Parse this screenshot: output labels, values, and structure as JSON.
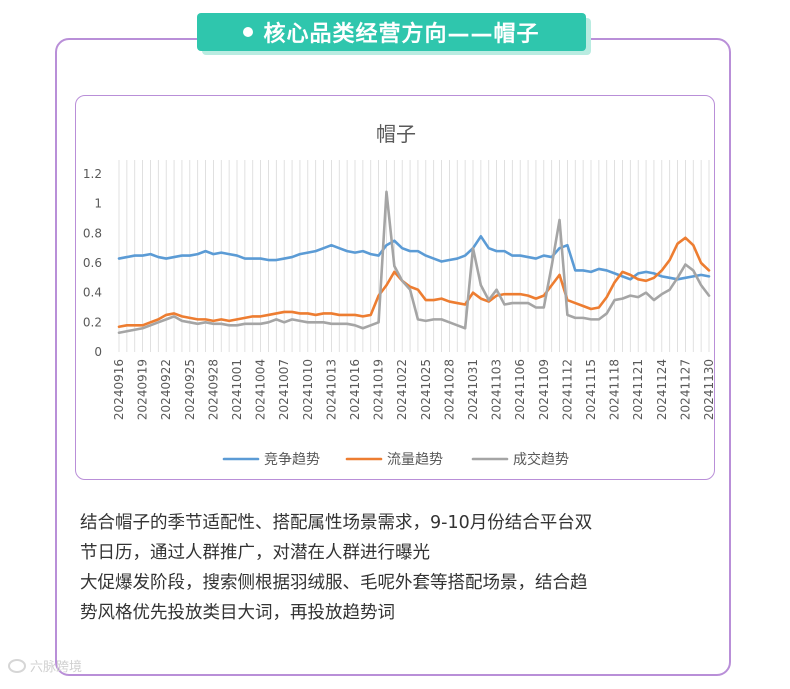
{
  "header": {
    "title": "核心品类经营方向——帽子"
  },
  "watermark": {
    "text": "六脉跨境"
  },
  "body_text": {
    "lines": [
      "结合帽子的季节适配性、搭配属性场景需求，9-10月份结合平台双",
      "节日历，通过人群推广，对潜在人群进行曝光",
      "大促爆发阶段，搜索侧根据羽绒服、毛呢外套等搭配场景，结合趋",
      "势风格优先投放类目大词，再投放趋势词"
    ]
  },
  "chart_data": {
    "type": "line",
    "title": "帽子",
    "xlabel": "",
    "ylabel": "",
    "ylim": [
      0,
      1.2
    ],
    "yticks": [
      "0",
      "0.2",
      "0.4",
      "0.6",
      "0.8",
      "1",
      "1.2"
    ],
    "grid": "vertical",
    "legend_position": "bottom",
    "x": [
      "20240916",
      "20240917",
      "20240918",
      "20240919",
      "20240920",
      "20240921",
      "20240922",
      "20240923",
      "20240924",
      "20240925",
      "20240926",
      "20240927",
      "20240928",
      "20240929",
      "20240930",
      "20241001",
      "20241002",
      "20241003",
      "20241004",
      "20241005",
      "20241006",
      "20241007",
      "20241008",
      "20241009",
      "20241010",
      "20241011",
      "20241012",
      "20241013",
      "20241014",
      "20241015",
      "20241016",
      "20241017",
      "20241018",
      "20241019",
      "20241020",
      "20241021",
      "20241022",
      "20241023",
      "20241024",
      "20241025",
      "20241026",
      "20241027",
      "20241028",
      "20241029",
      "20241030",
      "20241031",
      "20241101",
      "20241102",
      "20241103",
      "20241104",
      "20241105",
      "20241106",
      "20241107",
      "20241108",
      "20241109",
      "20241110",
      "20241111",
      "20241112",
      "20241113",
      "20241114",
      "20241115",
      "20241116",
      "20241117",
      "20241118",
      "20241119",
      "20241120",
      "20241121",
      "20241122",
      "20241123",
      "20241124",
      "20241125",
      "20241126",
      "20241127",
      "20241128",
      "20241129",
      "20241130"
    ],
    "x_tick_labels": [
      "20240916",
      "20240919",
      "20240922",
      "20240925",
      "20240928",
      "20241001",
      "20241004",
      "20241007",
      "20241010",
      "20241013",
      "20241016",
      "20241019",
      "20241022",
      "20241025",
      "20241028",
      "20241031",
      "20241103",
      "20241106",
      "20241109",
      "20241112",
      "20241115",
      "20241118",
      "20241121",
      "20241124",
      "20241127",
      "20241130"
    ],
    "series": [
      {
        "name": "竞争趋势",
        "color": "#5b9bd5",
        "values": [
          0.63,
          0.64,
          0.65,
          0.65,
          0.66,
          0.64,
          0.63,
          0.64,
          0.65,
          0.65,
          0.66,
          0.68,
          0.66,
          0.67,
          0.66,
          0.65,
          0.63,
          0.63,
          0.63,
          0.62,
          0.62,
          0.63,
          0.64,
          0.66,
          0.67,
          0.68,
          0.7,
          0.72,
          0.7,
          0.68,
          0.67,
          0.68,
          0.66,
          0.65,
          0.72,
          0.75,
          0.7,
          0.68,
          0.68,
          0.65,
          0.63,
          0.61,
          0.62,
          0.63,
          0.65,
          0.7,
          0.78,
          0.7,
          0.68,
          0.68,
          0.65,
          0.65,
          0.64,
          0.63,
          0.65,
          0.64,
          0.7,
          0.72,
          0.55,
          0.55,
          0.54,
          0.56,
          0.55,
          0.53,
          0.51,
          0.49,
          0.53,
          0.54,
          0.53,
          0.51,
          0.5,
          0.49,
          0.5,
          0.51,
          0.52,
          0.51
        ]
      },
      {
        "name": "流量趋势",
        "color": "#ed7d31",
        "values": [
          0.17,
          0.18,
          0.18,
          0.18,
          0.2,
          0.22,
          0.25,
          0.26,
          0.24,
          0.23,
          0.22,
          0.22,
          0.21,
          0.22,
          0.21,
          0.22,
          0.23,
          0.24,
          0.24,
          0.25,
          0.26,
          0.27,
          0.27,
          0.26,
          0.26,
          0.25,
          0.26,
          0.26,
          0.25,
          0.25,
          0.25,
          0.24,
          0.25,
          0.38,
          0.45,
          0.54,
          0.48,
          0.44,
          0.42,
          0.35,
          0.35,
          0.36,
          0.34,
          0.33,
          0.32,
          0.4,
          0.36,
          0.34,
          0.38,
          0.39,
          0.39,
          0.39,
          0.38,
          0.36,
          0.38,
          0.45,
          0.52,
          0.35,
          0.33,
          0.31,
          0.29,
          0.3,
          0.37,
          0.47,
          0.54,
          0.52,
          0.49,
          0.48,
          0.5,
          0.55,
          0.62,
          0.73,
          0.77,
          0.72,
          0.6,
          0.55
        ]
      },
      {
        "name": "成交趋势",
        "color": "#a5a5a5",
        "values": [
          0.13,
          0.14,
          0.15,
          0.16,
          0.18,
          0.2,
          0.22,
          0.24,
          0.21,
          0.2,
          0.19,
          0.2,
          0.19,
          0.19,
          0.18,
          0.18,
          0.19,
          0.19,
          0.19,
          0.2,
          0.22,
          0.2,
          0.22,
          0.21,
          0.2,
          0.2,
          0.2,
          0.19,
          0.19,
          0.19,
          0.18,
          0.16,
          0.18,
          0.2,
          1.08,
          0.58,
          0.48,
          0.42,
          0.22,
          0.21,
          0.22,
          0.22,
          0.2,
          0.18,
          0.16,
          0.7,
          0.45,
          0.35,
          0.42,
          0.32,
          0.33,
          0.33,
          0.33,
          0.3,
          0.3,
          0.58,
          0.89,
          0.25,
          0.23,
          0.23,
          0.22,
          0.22,
          0.26,
          0.35,
          0.36,
          0.38,
          0.37,
          0.4,
          0.35,
          0.39,
          0.42,
          0.5,
          0.59,
          0.55,
          0.45,
          0.38
        ]
      }
    ]
  }
}
